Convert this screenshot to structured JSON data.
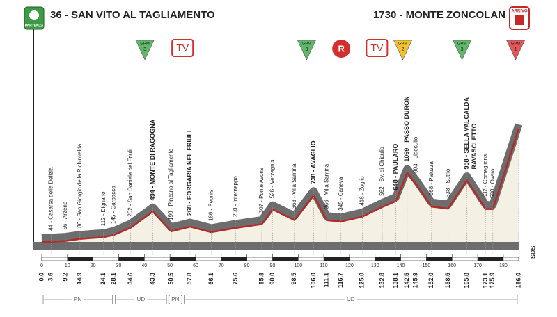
{
  "header": {
    "start": "36 - SAN VITO AL TAGLIAMENTO",
    "finish": "1730 - MONTE ZONCOLAN",
    "start_badge": "PARTENZA",
    "finish_badge": "ARRIVO"
  },
  "chart_data": {
    "type": "area",
    "x": [
      0.0,
      3.6,
      9.2,
      14.9,
      24.1,
      28.1,
      34.6,
      43.3,
      50.5,
      57.8,
      66.1,
      75.6,
      85.8,
      90.0,
      98.5,
      106.0,
      111.1,
      116.7,
      125.0,
      132.8,
      138.1,
      142.5,
      145.9,
      152.0,
      158.5,
      165.8,
      173.1,
      175.9,
      186.0
    ],
    "x_labels": [
      "0.0",
      "3.6",
      "9.2",
      "14.9",
      "24.1",
      "28.1",
      "34.6",
      "43.3",
      "50.5",
      "57.8",
      "66.1",
      "75.6",
      "85.8",
      "90.0",
      "98.5",
      "106.0",
      "111.1",
      "116.7",
      "125.0",
      "132.8",
      "138.1",
      "142.5",
      "145.9",
      "152.0",
      "158.5",
      "165.8",
      "173.1",
      "175.9",
      "186.0"
    ],
    "values": [
      36,
      44,
      56,
      86,
      112,
      145,
      252,
      494,
      199,
      268,
      186,
      250,
      307,
      526,
      368,
      738,
      366,
      345,
      418,
      562,
      648,
      1069,
      903,
      568,
      538,
      958,
      532,
      530,
      1730
    ],
    "value_labels": [
      null,
      "44 - Casarsa della Delizia",
      "56 - Arzene",
      "86 - San Giorgio della Richinvelda",
      "112 - Dignano",
      "145 - Carpacco",
      "252 - San Daniele del Friuli",
      "494 - MONTE DI RAGOGNA",
      "199 - Pinzano al Tagliamento",
      "268 - FORGARIA NEL FRIULI",
      "186 - Peonis",
      "250 - Interneppo",
      "307 - Ponte Avons",
      "526 - Verzegnis",
      "368 - Villa Santina",
      "738 - AVAGLIO",
      "366 - Villa Santina",
      "345 - Caneva",
      "418 - Zuglio",
      "562 - Bv. di Chiaulis",
      "648 - PAULARO",
      "1069 - PASSO DURON",
      "903 - Ligosullo",
      "568 - Paluzza",
      "538 - Sutrio",
      "958 - SELLA VALCALDA",
      "532 - Comeglians",
      "530 - Ovaro",
      null
    ],
    "bold": [
      false,
      false,
      false,
      false,
      false,
      false,
      false,
      true,
      false,
      true,
      false,
      false,
      false,
      false,
      false,
      true,
      false,
      false,
      false,
      false,
      true,
      true,
      false,
      false,
      false,
      true,
      false,
      false,
      false
    ],
    "annotations": [
      {
        "x": 165.8,
        "text": "RAVASCLETTO"
      }
    ],
    "xlim": [
      0,
      186
    ],
    "xticks": [
      0,
      10,
      20,
      30,
      40,
      50,
      60,
      70,
      80,
      90,
      100,
      110,
      120,
      130,
      140,
      150,
      160,
      170,
      180
    ],
    "line_color": "#b22a2a",
    "fill_color": "#f4f1e4",
    "band_color": "#6d6d6d",
    "markers": [
      {
        "x": 40.2,
        "kind": "GPM",
        "cat": "3",
        "color": "#62b86a"
      },
      {
        "x": 54.9,
        "kind": "TV"
      },
      {
        "x": 103.3,
        "kind": "GPM",
        "cat": "3",
        "color": "#62b86a"
      },
      {
        "x": 116.8,
        "kind": "R"
      },
      {
        "x": 130.7,
        "kind": "TV"
      },
      {
        "x": 140.8,
        "kind": "GPM",
        "cat": "2",
        "color": "#f2c230"
      },
      {
        "x": 163.9,
        "kind": "GPM",
        "cat": "3",
        "color": "#62b86a"
      },
      {
        "x": 184.8,
        "kind": "GPM",
        "cat": "1",
        "color": "#e2575a"
      }
    ],
    "regions": [
      {
        "label": "PN",
        "from": 0,
        "to": 28.1
      },
      {
        "label": "UD",
        "from": 28.1,
        "to": 49.2
      },
      {
        "label": "PN",
        "from": 49.2,
        "to": 55.0
      },
      {
        "label": "UD",
        "from": 55.0,
        "to": 186.0
      }
    ],
    "credit": "SDS"
  }
}
